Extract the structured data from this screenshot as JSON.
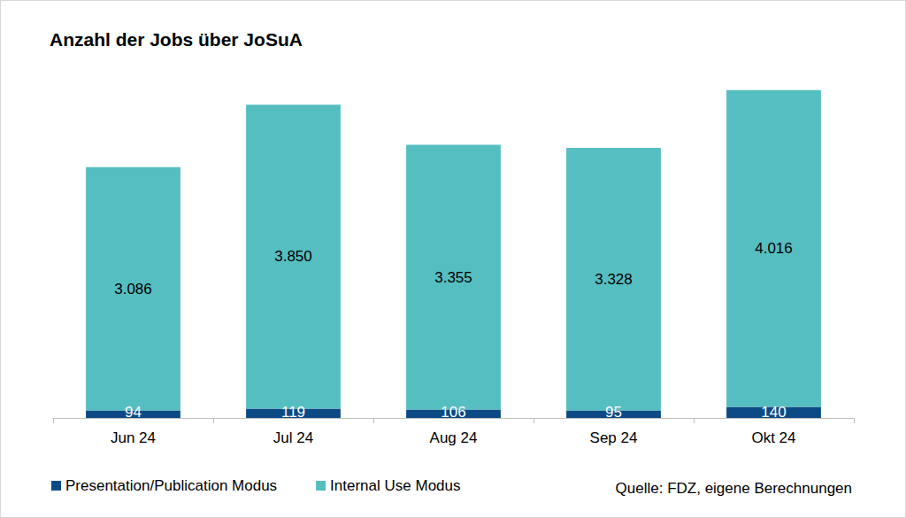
{
  "chart_data": {
    "type": "bar",
    "title": "Anzahl der Jobs über JoSuA",
    "source": "Quelle: FDZ, eigene Berechnungen",
    "categories": [
      "Jun 24",
      "Jul 24",
      "Aug 24",
      "Sep 24",
      "Okt 24"
    ],
    "series": [
      {
        "name": "Presentation/Publication Modus",
        "color": "#0b4a85",
        "values": [
          94,
          119,
          106,
          95,
          140
        ]
      },
      {
        "name": "Internal Use Modus",
        "color": "#55bec0",
        "values": [
          3086,
          3850,
          3355,
          3328,
          4016
        ],
        "value_labels": [
          "3.086",
          "3.850",
          "3.355",
          "3.328",
          "4.016"
        ]
      }
    ],
    "ylim": [
      0,
      4500
    ],
    "stacked": true,
    "data_labels": true,
    "grid": false,
    "legend": "bottom-left",
    "tick_labels": "x"
  }
}
